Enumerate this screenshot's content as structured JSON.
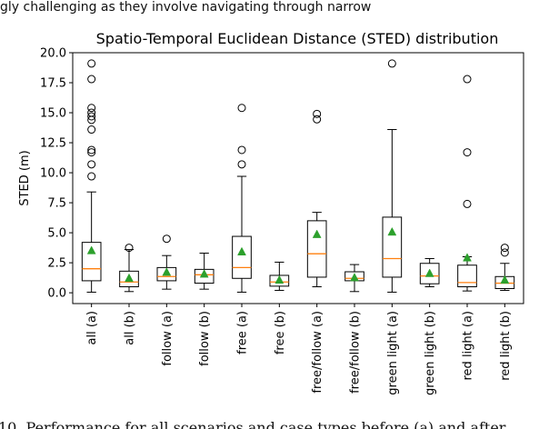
{
  "page_text_top": "gly challenging as they involve navigating through narrow",
  "page_text_bottom": "10. Performance for all scenarios and case types before (a) and after",
  "chart_data": {
    "type": "box",
    "title": "Spatio-Temporal Euclidean Distance (STED) distribution",
    "xlabel": "",
    "ylabel": "STED (m)",
    "ylim": [
      -0.9,
      20.0
    ],
    "yticks": [
      0.0,
      2.5,
      5.0,
      7.5,
      10.0,
      12.5,
      15.0,
      17.5,
      20.0
    ],
    "ytick_labels": [
      "0.0",
      "2.5",
      "5.0",
      "7.5",
      "10.0",
      "12.5",
      "15.0",
      "17.5",
      "20.0"
    ],
    "categories": [
      "all (a)",
      "all (b)",
      "follow (a)",
      "follow (b)",
      "free (a)",
      "free (b)",
      "free/follow (a)",
      "free/follow (b)",
      "green light (a)",
      "green light (b)",
      "red light (a)",
      "red light (b)"
    ],
    "boxes": [
      {
        "label": "all (a)",
        "whislo": 0.05,
        "q1": 1.0,
        "med": 2.0,
        "q3": 4.2,
        "whishi": 8.4,
        "mean": 3.5,
        "fliers": [
          9.7,
          10.7,
          11.7,
          11.9,
          13.6,
          14.4,
          14.7,
          15.0,
          15.4,
          17.8,
          19.1
        ]
      },
      {
        "label": "all (b)",
        "whislo": 0.1,
        "q1": 0.5,
        "med": 0.9,
        "q3": 1.8,
        "whishi": 3.6,
        "mean": 1.2,
        "fliers": [
          3.75
        ]
      },
      {
        "label": "follow (a)",
        "whislo": 0.3,
        "q1": 1.0,
        "med": 1.35,
        "q3": 2.1,
        "whishi": 3.1,
        "mean": 1.7,
        "fliers": [
          4.5
        ]
      },
      {
        "label": "follow (b)",
        "whislo": 0.3,
        "q1": 0.8,
        "med": 1.5,
        "q3": 1.95,
        "whishi": 3.3,
        "mean": 1.55,
        "fliers": []
      },
      {
        "label": "free (a)",
        "whislo": 0.05,
        "q1": 1.2,
        "med": 2.1,
        "q3": 4.7,
        "whishi": 9.7,
        "mean": 3.4,
        "fliers": [
          10.7,
          11.9,
          15.4
        ]
      },
      {
        "label": "free (b)",
        "whislo": 0.2,
        "q1": 0.55,
        "med": 0.9,
        "q3": 1.45,
        "whishi": 2.55,
        "mean": 1.05,
        "fliers": []
      },
      {
        "label": "free/follow (a)",
        "whislo": 0.5,
        "q1": 1.3,
        "med": 3.25,
        "q3": 6.0,
        "whishi": 6.7,
        "mean": 4.85,
        "fliers": [
          14.45,
          14.9
        ]
      },
      {
        "label": "free/follow (b)",
        "whislo": 0.1,
        "q1": 1.0,
        "med": 1.2,
        "q3": 1.75,
        "whishi": 2.35,
        "mean": 1.25,
        "fliers": []
      },
      {
        "label": "green light (a)",
        "whislo": 0.05,
        "q1": 1.3,
        "med": 2.85,
        "q3": 6.3,
        "whishi": 13.6,
        "mean": 5.05,
        "fliers": [
          19.1
        ]
      },
      {
        "label": "green light (b)",
        "whislo": 0.5,
        "q1": 0.75,
        "med": 1.4,
        "q3": 2.45,
        "whishi": 2.85,
        "mean": 1.6,
        "fliers": []
      },
      {
        "label": "red light (a)",
        "whislo": 0.15,
        "q1": 0.5,
        "med": 0.85,
        "q3": 2.3,
        "whishi": 3.0,
        "mean": 2.9,
        "fliers": [
          7.4,
          11.7,
          17.8
        ]
      },
      {
        "label": "red light (b)",
        "whislo": 0.2,
        "q1": 0.35,
        "med": 0.8,
        "q3": 1.35,
        "whishi": 2.45,
        "mean": 1.05,
        "fliers": [
          3.35,
          3.75
        ]
      }
    ],
    "colors": {
      "box": "#000000",
      "median": "#ff7f0e",
      "mean": "#2ca02c",
      "flier": "#000000"
    }
  }
}
